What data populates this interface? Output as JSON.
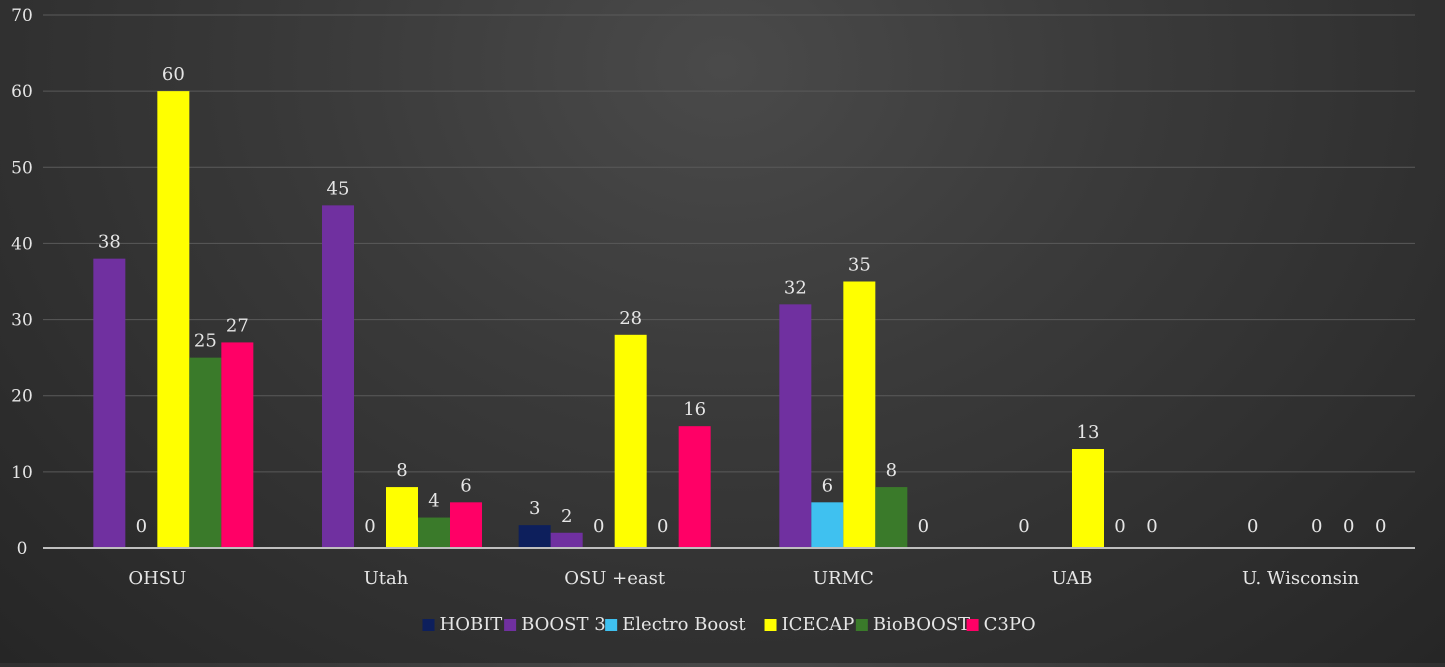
{
  "chart_data": {
    "type": "bar",
    "categories": [
      "OHSU",
      "Utah",
      "OSU +east",
      "URMC",
      "UAB",
      "U. Wisconsin"
    ],
    "series": [
      {
        "name": "HOBIT",
        "color": "#0d1f5c",
        "values": [
          0,
          0,
          3,
          0,
          0,
          0
        ]
      },
      {
        "name": "BOOST 3",
        "color": "#7030a0",
        "values": [
          38,
          45,
          2,
          32,
          0,
          0
        ]
      },
      {
        "name": "Electro Boost",
        "color": "#3fc1f0",
        "values": [
          0,
          0,
          0,
          6,
          0,
          0
        ]
      },
      {
        "name": "ICECAP",
        "color": "#ffff00",
        "values": [
          60,
          8,
          28,
          35,
          13,
          0
        ]
      },
      {
        "name": "BioBOOST",
        "color": "#3a7a2a",
        "values": [
          25,
          4,
          0,
          8,
          0,
          0
        ]
      },
      {
        "name": "C3PO",
        "color": "#ff0066",
        "values": [
          27,
          6,
          16,
          0,
          0,
          0
        ]
      }
    ],
    "labels": [
      {
        "cat": 0,
        "series": 1,
        "text": "38"
      },
      {
        "cat": 0,
        "series": 2,
        "text": "0"
      },
      {
        "cat": 0,
        "series": 3,
        "text": "60"
      },
      {
        "cat": 0,
        "series": 4,
        "text": "25"
      },
      {
        "cat": 0,
        "series": 5,
        "text": "27"
      },
      {
        "cat": 1,
        "series": 1,
        "text": "45"
      },
      {
        "cat": 1,
        "series": 2,
        "text": "0"
      },
      {
        "cat": 1,
        "series": 3,
        "text": "8"
      },
      {
        "cat": 1,
        "series": 4,
        "text": "4"
      },
      {
        "cat": 1,
        "series": 5,
        "text": "6"
      },
      {
        "cat": 2,
        "series": 0,
        "text": "3"
      },
      {
        "cat": 2,
        "series": 1,
        "text": "2"
      },
      {
        "cat": 2,
        "series": 2,
        "text": "0"
      },
      {
        "cat": 2,
        "series": 3,
        "text": "28"
      },
      {
        "cat": 2,
        "series": 4,
        "text": "0"
      },
      {
        "cat": 2,
        "series": 5,
        "text": "16"
      },
      {
        "cat": 3,
        "series": 1,
        "text": "32"
      },
      {
        "cat": 3,
        "series": 2,
        "text": "6"
      },
      {
        "cat": 3,
        "series": 3,
        "text": "35"
      },
      {
        "cat": 3,
        "series": 4,
        "text": "8"
      },
      {
        "cat": 3,
        "series": 5,
        "text": "0"
      },
      {
        "cat": 4,
        "series": 1,
        "text": "0"
      },
      {
        "cat": 4,
        "series": 3,
        "text": "13"
      },
      {
        "cat": 4,
        "series": 4,
        "text": "0"
      },
      {
        "cat": 4,
        "series": 5,
        "text": "0"
      },
      {
        "cat": 5,
        "series": 1,
        "text": "0"
      },
      {
        "cat": 5,
        "series": 3,
        "text": "0"
      },
      {
        "cat": 5,
        "series": 4,
        "text": "0"
      },
      {
        "cat": 5,
        "series": 5,
        "text": "0"
      }
    ],
    "yticks": [
      "0",
      "10",
      "20",
      "30",
      "40",
      "50",
      "60",
      "70"
    ],
    "ylim": [
      0,
      70
    ],
    "grid": true,
    "legend_position": "bottom",
    "title": "",
    "xlabel": "",
    "ylabel": ""
  },
  "colors": {
    "text": "#e6e6e6",
    "grid": "#5a5a5a",
    "axis": "#bfbfbf"
  }
}
